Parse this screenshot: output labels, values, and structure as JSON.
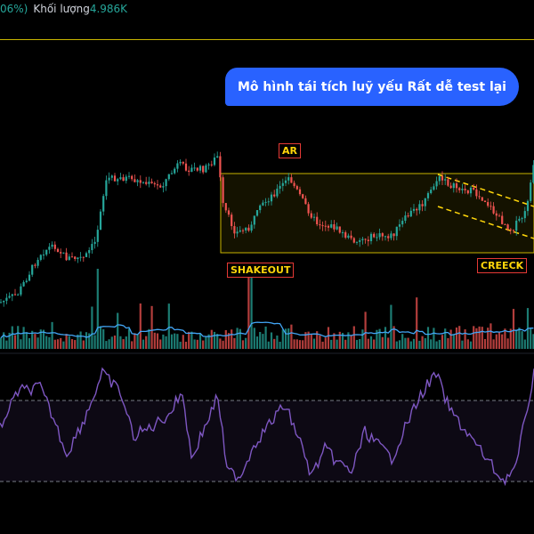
{
  "header": {
    "percent_fragment": "06%)",
    "volume_label": "Khối lượng",
    "volume_value": "4.986K"
  },
  "callout": {
    "text": "Mô hình tái tích luỹ yếu Rất dễ test lại"
  },
  "annotations": {
    "ar": "AR",
    "shakeout": "SHAKEOUT",
    "creeck": "CREECK"
  },
  "colors": {
    "background": "#000000",
    "up_candle": "#26a69a",
    "down_candle": "#ef5350",
    "volume_ma": "#42a5f5",
    "rsi_line": "#7e57c2",
    "range_box": "#c8b400",
    "callout_bg": "#2962ff",
    "tag_text": "#ffd60a",
    "tag_border": "#e53935"
  },
  "icons": {}
}
